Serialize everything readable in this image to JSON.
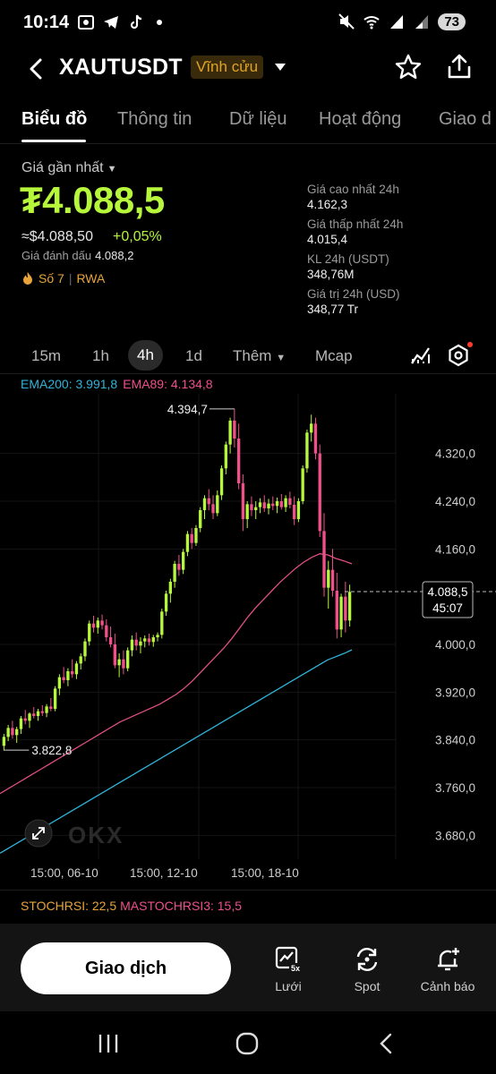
{
  "status_bar": {
    "time": "10:14",
    "battery": "73",
    "left_icons": [
      "screen-record-icon",
      "telegram-icon",
      "tiktok-icon",
      "dot-icon"
    ],
    "right_icons": [
      "mute-icon",
      "wifi-icon",
      "signal-icon",
      "signal-icon-2"
    ]
  },
  "header": {
    "symbol": "XAUTUSDT",
    "contract_badge": "Vĩnh cửu"
  },
  "tabs": [
    {
      "label": "Biểu đồ",
      "active": true
    },
    {
      "label": "Thông tin",
      "active": false
    },
    {
      "label": "Dữ liệu",
      "active": false
    },
    {
      "label": "Hoạt động",
      "active": false
    },
    {
      "label": "Giao d",
      "active": false
    }
  ],
  "price": {
    "label": "Giá gần nhất",
    "last": "₮4.088,5",
    "approx_usd": "≈$4.088,50",
    "change": "+0,05%",
    "mark_label": "Giá đánh dấu",
    "mark_value": "4.088,2",
    "rank_label": "Số 7",
    "rank_tag": "RWA"
  },
  "stats": [
    {
      "label": "Giá cao nhất 24h",
      "value": "4.162,3"
    },
    {
      "label": "Giá thấp nhất 24h",
      "value": "4.015,4"
    },
    {
      "label": "KL 24h (USDT)",
      "value": "348,76M"
    },
    {
      "label": "Giá trị 24h (USD)",
      "value": "348,77 Tr"
    }
  ],
  "intervals": [
    {
      "label": "15m",
      "active": false
    },
    {
      "label": "1h",
      "active": false
    },
    {
      "label": "4h",
      "active": true
    },
    {
      "label": "1d",
      "active": false
    },
    {
      "label": "Thêm",
      "active": false
    },
    {
      "label": "Mcap",
      "active": false
    }
  ],
  "indicators": {
    "ema200": "EMA200: 3.991,8",
    "ema89": "EMA89: 4.134,8",
    "stochrsi": "STOCHRSI: 22,5",
    "mastochrsi": "MASTOCHRSI3: 15,5"
  },
  "chart_data": {
    "type": "candlestick",
    "ylim": [
      3640,
      4420
    ],
    "y_ticks": [
      "4.320,0",
      "4.240,0",
      "4.160,0",
      "4.000,0",
      "3.920,0",
      "3.840,0",
      "3.760,0",
      "3.680,0"
    ],
    "y_tick_values": [
      4320,
      4240,
      4160,
      4000,
      3920,
      3840,
      3760,
      3680
    ],
    "x_labels": [
      "15:00, 06-10",
      "15:00, 12-10",
      "15:00, 18-10"
    ],
    "high_label": "4.394,7",
    "high_value": 4394.7,
    "low_label": "3.822,8",
    "low_value": 3822.8,
    "current_price_label": "4.088,5",
    "current_price_value": 4088.5,
    "countdown": "45:07",
    "colors": {
      "up": "#b7f73b",
      "down": "#f0508a",
      "ema200": "#2fb4d9",
      "ema89": "#e05080"
    },
    "watermark": "OKX",
    "candles": [
      [
        3830,
        3850,
        3822,
        3845
      ],
      [
        3845,
        3865,
        3838,
        3860
      ],
      [
        3860,
        3872,
        3842,
        3848
      ],
      [
        3848,
        3862,
        3835,
        3858
      ],
      [
        3858,
        3880,
        3850,
        3876
      ],
      [
        3876,
        3890,
        3866,
        3872
      ],
      [
        3872,
        3886,
        3860,
        3884
      ],
      [
        3884,
        3895,
        3876,
        3880
      ],
      [
        3880,
        3892,
        3872,
        3888
      ],
      [
        3888,
        3898,
        3880,
        3885
      ],
      [
        3885,
        3900,
        3878,
        3896
      ],
      [
        3896,
        3910,
        3888,
        3892
      ],
      [
        3892,
        3930,
        3888,
        3926
      ],
      [
        3926,
        3950,
        3915,
        3945
      ],
      [
        3945,
        3962,
        3935,
        3940
      ],
      [
        3940,
        3960,
        3930,
        3955
      ],
      [
        3955,
        3975,
        3944,
        3950
      ],
      [
        3950,
        3972,
        3942,
        3968
      ],
      [
        3968,
        3985,
        3958,
        3980
      ],
      [
        3980,
        4010,
        3972,
        4005
      ],
      [
        4005,
        4040,
        3998,
        4035
      ],
      [
        4035,
        4048,
        4020,
        4028
      ],
      [
        4028,
        4045,
        4018,
        4040
      ],
      [
        4040,
        4050,
        4025,
        4032
      ],
      [
        4032,
        4042,
        4005,
        4012
      ],
      [
        4012,
        4030,
        3995,
        4000
      ],
      [
        4000,
        4018,
        3960,
        3965
      ],
      [
        3965,
        3985,
        3945,
        3975
      ],
      [
        3975,
        3990,
        3950,
        3960
      ],
      [
        3960,
        3995,
        3955,
        3990
      ],
      [
        3990,
        4015,
        3980,
        4008
      ],
      [
        4008,
        4020,
        3990,
        3998
      ],
      [
        3998,
        4012,
        3985,
        4005
      ],
      [
        4005,
        4015,
        3995,
        4010
      ],
      [
        4010,
        4018,
        3998,
        4004
      ],
      [
        4004,
        4016,
        3996,
        4012
      ],
      [
        4012,
        4020,
        4005,
        4016
      ],
      [
        4016,
        4060,
        4010,
        4055
      ],
      [
        4055,
        4090,
        4048,
        4085
      ],
      [
        4085,
        4110,
        4070,
        4105
      ],
      [
        4105,
        4140,
        4095,
        4135
      ],
      [
        4135,
        4150,
        4115,
        4125
      ],
      [
        4125,
        4160,
        4118,
        4155
      ],
      [
        4155,
        4190,
        4148,
        4185
      ],
      [
        4185,
        4195,
        4160,
        4170
      ],
      [
        4170,
        4200,
        4165,
        4195
      ],
      [
        4195,
        4230,
        4188,
        4225
      ],
      [
        4225,
        4250,
        4210,
        4245
      ],
      [
        4245,
        4260,
        4225,
        4235
      ],
      [
        4235,
        4250,
        4210,
        4220
      ],
      [
        4220,
        4258,
        4215,
        4250
      ],
      [
        4250,
        4300,
        4242,
        4295
      ],
      [
        4295,
        4340,
        4285,
        4335
      ],
      [
        4335,
        4380,
        4320,
        4375
      ],
      [
        4375,
        4395,
        4330,
        4345
      ],
      [
        4345,
        4370,
        4260,
        4270
      ],
      [
        4270,
        4285,
        4190,
        4210
      ],
      [
        4210,
        4240,
        4195,
        4235
      ],
      [
        4235,
        4248,
        4215,
        4225
      ],
      [
        4225,
        4240,
        4210,
        4230
      ],
      [
        4230,
        4245,
        4220,
        4238
      ],
      [
        4238,
        4250,
        4222,
        4228
      ],
      [
        4228,
        4244,
        4218,
        4236
      ],
      [
        4236,
        4248,
        4225,
        4232
      ],
      [
        4232,
        4246,
        4220,
        4240
      ],
      [
        4240,
        4252,
        4226,
        4230
      ],
      [
        4230,
        4250,
        4222,
        4245
      ],
      [
        4245,
        4256,
        4228,
        4234
      ],
      [
        4234,
        4248,
        4200,
        4210
      ],
      [
        4210,
        4245,
        4205,
        4240
      ],
      [
        4240,
        4300,
        4235,
        4295
      ],
      [
        4295,
        4360,
        4288,
        4355
      ],
      [
        4355,
        4385,
        4340,
        4370
      ],
      [
        4370,
        4380,
        4310,
        4320
      ],
      [
        4320,
        4335,
        4180,
        4190
      ],
      [
        4190,
        4220,
        4080,
        4095
      ],
      [
        4095,
        4140,
        4060,
        4125
      ],
      [
        4125,
        4160,
        4080,
        4090
      ],
      [
        4090,
        4120,
        4010,
        4025
      ],
      [
        4025,
        4085,
        4012,
        4080
      ],
      [
        4080,
        4105,
        4020,
        4040
      ],
      [
        4040,
        4100,
        4030,
        4088
      ]
    ],
    "ema200_series": [
      3650,
      3656,
      3662,
      3668,
      3674,
      3680,
      3686,
      3692,
      3698,
      3704,
      3710,
      3716,
      3722,
      3728,
      3734,
      3740,
      3746,
      3752,
      3758,
      3764,
      3770,
      3776,
      3782,
      3788,
      3794,
      3800,
      3806,
      3812,
      3818,
      3824,
      3830,
      3836,
      3842,
      3848,
      3854,
      3860,
      3866,
      3872,
      3878,
      3884,
      3890,
      3896,
      3902,
      3908,
      3914,
      3920,
      3926,
      3932,
      3938,
      3944,
      3950,
      3956,
      3962,
      3968,
      3974,
      3978,
      3982,
      3986,
      3991
    ],
    "ema89_series": [
      3750,
      3758,
      3766,
      3774,
      3782,
      3790,
      3798,
      3806,
      3814,
      3822,
      3830,
      3838,
      3846,
      3854,
      3862,
      3870,
      3876,
      3882,
      3888,
      3894,
      3900,
      3908,
      3916,
      3926,
      3938,
      3952,
      3966,
      3980,
      3994,
      4010,
      4028,
      4046,
      4062,
      4076,
      4090,
      4104,
      4116,
      4128,
      4138,
      4146,
      4152,
      4150,
      4144,
      4140,
      4135
    ]
  },
  "bottom_bar": {
    "trade_label": "Giao dịch",
    "actions": [
      {
        "label": "Lưới",
        "icon": "grid-bot-icon",
        "badge": "5x"
      },
      {
        "label": "Spot",
        "icon": "spot-swap-icon"
      },
      {
        "label": "Cảnh báo",
        "icon": "add-alert-icon"
      }
    ]
  }
}
